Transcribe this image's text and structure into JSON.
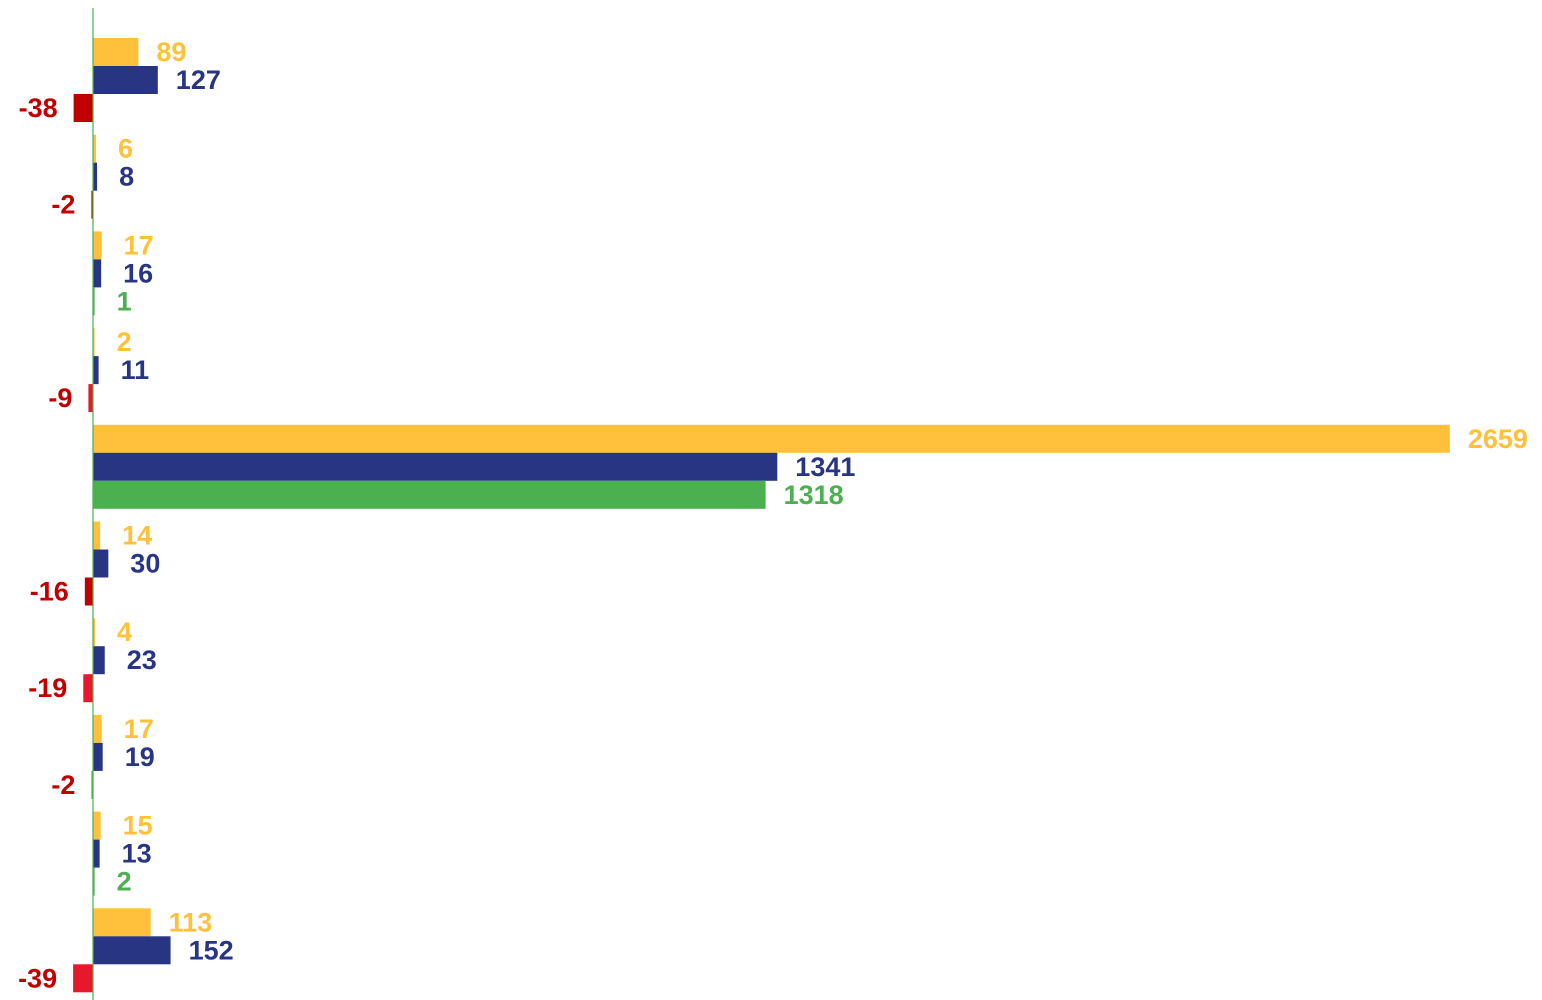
{
  "chart_data": {
    "type": "bar",
    "orientation": "horizontal",
    "title": "",
    "xlabel": "",
    "ylabel": "",
    "xlim": [
      -40,
      2675
    ],
    "grid": false,
    "legend": "none",
    "categories_count": 10,
    "groups": [
      {
        "a": 89,
        "b": 127,
        "c": -38,
        "c_color": "#C00000",
        "c_label_color": "#C00000"
      },
      {
        "a": 6,
        "b": 8,
        "c": -2,
        "c_color": "#C00000",
        "c_label_color": "#C00000"
      },
      {
        "a": 17,
        "b": 16,
        "c": 1,
        "c_color": "#4CAF50",
        "c_label_color": "#4CAF50"
      },
      {
        "a": 2,
        "b": 11,
        "c": -9,
        "c_color": "#E8182C",
        "c_label_color": "#C00000"
      },
      {
        "a": 2659,
        "b": 1341,
        "c": 1318,
        "c_color": "#4CAF50",
        "c_label_color": "#4CAF50"
      },
      {
        "a": 14,
        "b": 30,
        "c": -16,
        "c_color": "#C00000",
        "c_label_color": "#C00000"
      },
      {
        "a": 4,
        "b": 23,
        "c": -19,
        "c_color": "#E8182C",
        "c_label_color": "#C00000"
      },
      {
        "a": 17,
        "b": 19,
        "c": -2,
        "c_color": "#4CAF50",
        "c_label_color": "#C00000"
      },
      {
        "a": 15,
        "b": 13,
        "c": 2,
        "c_color": "#4CAF50",
        "c_label_color": "#4CAF50"
      },
      {
        "a": 113,
        "b": 152,
        "c": -39,
        "c_color": "#E8182C",
        "c_label_color": "#C00000"
      }
    ],
    "colors": {
      "a": "#FFC13B",
      "b": "#283583",
      "positive_delta": "#4CAF50",
      "negative_delta": "#C00000",
      "axis": "#4CAF50"
    }
  }
}
